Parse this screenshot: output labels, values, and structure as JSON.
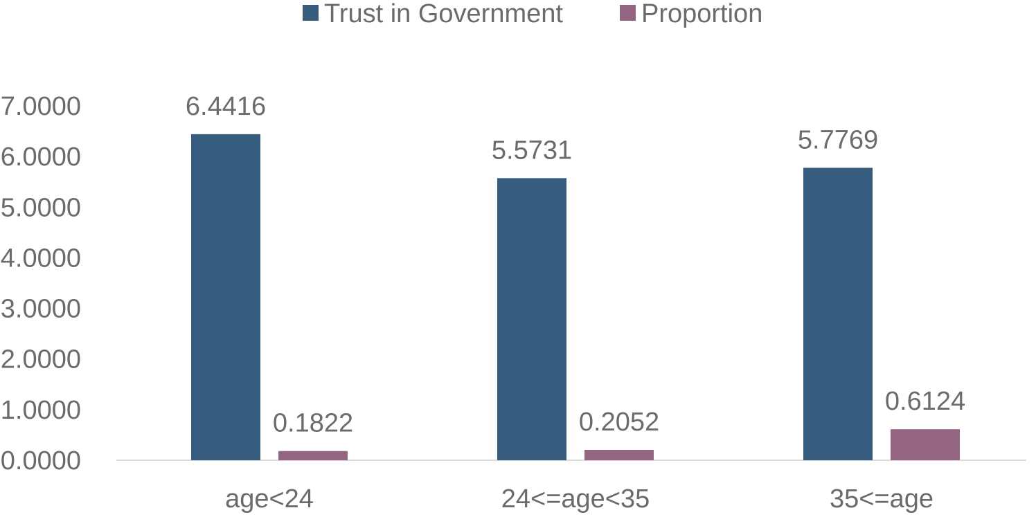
{
  "chart_data": {
    "type": "bar",
    "title": "",
    "xlabel": "",
    "ylabel": "",
    "categories": [
      "age<24",
      "24<=age<35",
      "35<=age"
    ],
    "series": [
      {
        "name": "Trust in Government",
        "color": "#365c7e",
        "values": [
          6.4416,
          5.5731,
          5.7769
        ],
        "labels": [
          "6.4416",
          "5.5731",
          "5.7769"
        ]
      },
      {
        "name": "Proportion",
        "color": "#946580",
        "values": [
          0.1822,
          0.2052,
          0.6124
        ],
        "labels": [
          "0.1822",
          "0.2052",
          "0.6124"
        ]
      }
    ],
    "ylim": [
      0,
      7
    ],
    "yticks": [
      0,
      1,
      2,
      3,
      4,
      5,
      6,
      7
    ],
    "ytick_labels": [
      "0.0000",
      "1.0000",
      "2.0000",
      "3.0000",
      "4.0000",
      "5.0000",
      "6.0000",
      "7.0000"
    ],
    "grid": false,
    "legend_position": "top-center",
    "axis_line_color": "#d9d9d9"
  }
}
